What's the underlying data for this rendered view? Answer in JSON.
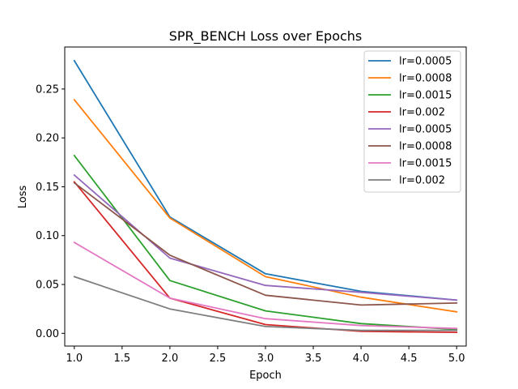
{
  "chart_data": {
    "type": "line",
    "title": "SPR_BENCH Loss over Epochs",
    "xlabel": "Epoch",
    "ylabel": "Loss",
    "xlim": [
      0.9,
      5.1
    ],
    "ylim": [
      -0.013,
      0.293
    ],
    "xticks": [
      "1.0",
      "1.5",
      "2.0",
      "2.5",
      "3.0",
      "3.5",
      "4.0",
      "4.5",
      "5.0"
    ],
    "yticks": [
      "0.00",
      "0.05",
      "0.10",
      "0.15",
      "0.20",
      "0.25"
    ],
    "grid": false,
    "legend_position": "top-right",
    "x": [
      1,
      2,
      3,
      4,
      5
    ],
    "series": [
      {
        "name": "lr=0.0005",
        "color": "#1f77b4",
        "values": [
          0.279,
          0.119,
          0.061,
          0.043,
          0.034
        ]
      },
      {
        "name": "lr=0.0008",
        "color": "#ff7f0e",
        "values": [
          0.239,
          0.118,
          0.058,
          0.037,
          0.022
        ]
      },
      {
        "name": "lr=0.0015",
        "color": "#2ca02c",
        "values": [
          0.182,
          0.054,
          0.023,
          0.01,
          0.004
        ]
      },
      {
        "name": "lr=0.002",
        "color": "#d62728",
        "values": [
          0.155,
          0.036,
          0.009,
          0.002,
          0.001
        ]
      },
      {
        "name": "lr=0.0005",
        "color": "#9467bd",
        "values": [
          0.162,
          0.077,
          0.049,
          0.042,
          0.034
        ]
      },
      {
        "name": "lr=0.0008",
        "color": "#8c564b",
        "values": [
          0.154,
          0.08,
          0.039,
          0.029,
          0.031
        ]
      },
      {
        "name": "lr=0.0015",
        "color": "#e377c2",
        "values": [
          0.093,
          0.036,
          0.015,
          0.008,
          0.005
        ]
      },
      {
        "name": "lr=0.002",
        "color": "#7f7f7f",
        "values": [
          0.058,
          0.025,
          0.007,
          0.003,
          0.003
        ]
      }
    ]
  }
}
